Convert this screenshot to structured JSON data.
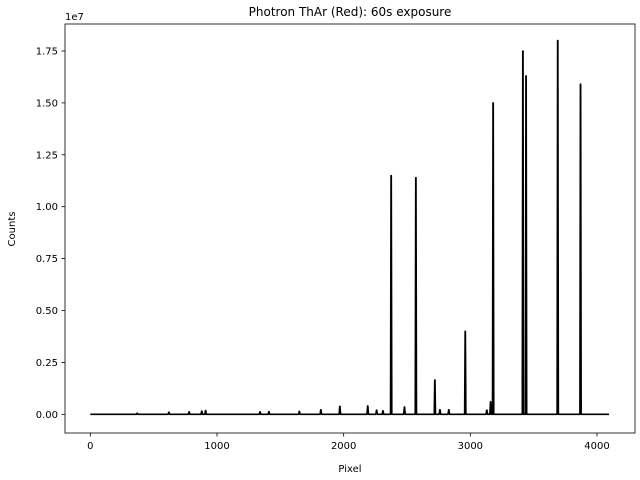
{
  "chart_data": {
    "type": "line",
    "title": "Photron ThAr (Red): 60s exposure",
    "xlabel": "Pixel",
    "ylabel": "Counts",
    "y_offset_label": "1e7",
    "xlim": [
      -200,
      4300
    ],
    "ylim": [
      -0.09,
      1.88
    ],
    "xticks": [
      0,
      1000,
      2000,
      3000,
      4000
    ],
    "xtick_labels": [
      "0",
      "1000",
      "2000",
      "3000",
      "4000"
    ],
    "yticks": [
      0.0,
      0.25,
      0.5,
      0.75,
      1.0,
      1.25,
      1.5,
      1.75
    ],
    "ytick_labels": [
      "0.00",
      "0.25",
      "0.50",
      "0.75",
      "1.00",
      "1.25",
      "1.50",
      "1.75"
    ],
    "grid": false,
    "line_color": "#000000",
    "x_range": [
      0,
      4095
    ],
    "baseline": 0.0,
    "peaks": [
      {
        "x": 370,
        "y": 0.005
      },
      {
        "x": 620,
        "y": 0.01
      },
      {
        "x": 780,
        "y": 0.012
      },
      {
        "x": 880,
        "y": 0.015
      },
      {
        "x": 910,
        "y": 0.018
      },
      {
        "x": 1340,
        "y": 0.012
      },
      {
        "x": 1410,
        "y": 0.013
      },
      {
        "x": 1650,
        "y": 0.014
      },
      {
        "x": 1820,
        "y": 0.022
      },
      {
        "x": 1970,
        "y": 0.038
      },
      {
        "x": 2190,
        "y": 0.04
      },
      {
        "x": 2260,
        "y": 0.02
      },
      {
        "x": 2310,
        "y": 0.017
      },
      {
        "x": 2375,
        "y": 1.15
      },
      {
        "x": 2480,
        "y": 0.035
      },
      {
        "x": 2570,
        "y": 1.14
      },
      {
        "x": 2720,
        "y": 0.165
      },
      {
        "x": 2760,
        "y": 0.022
      },
      {
        "x": 2830,
        "y": 0.022
      },
      {
        "x": 2960,
        "y": 0.4
      },
      {
        "x": 3130,
        "y": 0.02
      },
      {
        "x": 3160,
        "y": 0.06
      },
      {
        "x": 3180,
        "y": 1.5
      },
      {
        "x": 3415,
        "y": 1.75
      },
      {
        "x": 3440,
        "y": 1.63
      },
      {
        "x": 3690,
        "y": 1.8
      },
      {
        "x": 3870,
        "y": 1.59
      }
    ]
  }
}
